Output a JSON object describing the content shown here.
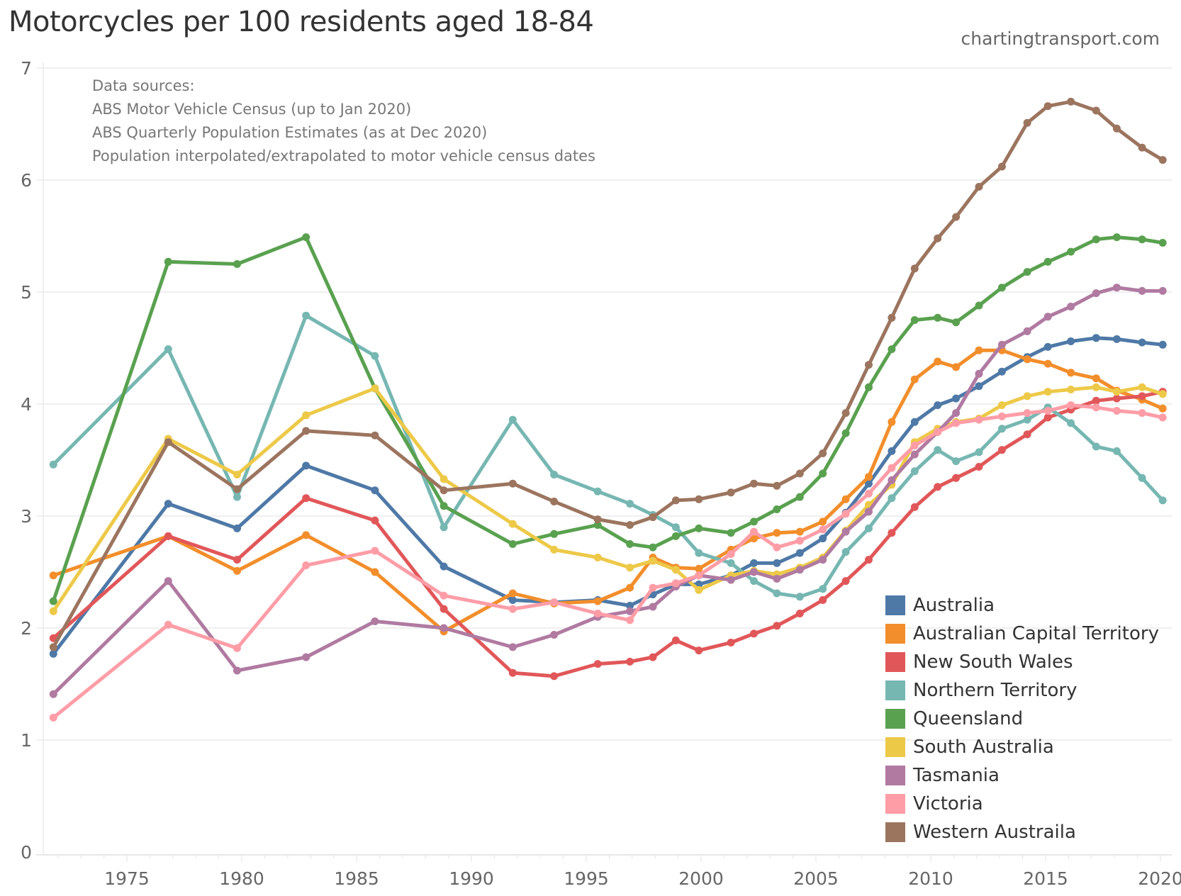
{
  "header": {
    "title": "Motorcycles per 100 residents aged 18-84",
    "site": "chartingtransport.com"
  },
  "chart_data": {
    "type": "line",
    "title": "Motorcycles per 100 residents aged 18-84",
    "xlabel": "",
    "ylabel": "",
    "xlim": [
      1971.4,
      2020.5
    ],
    "ylim": [
      0,
      7
    ],
    "grid": true,
    "legend_position": "bottom-right",
    "y_ticks": [
      "0",
      "1",
      "2",
      "3",
      "4",
      "5",
      "6",
      "7"
    ],
    "x_ticks": [
      "1975",
      "1980",
      "1985",
      "1990",
      "1995",
      "2000",
      "2005",
      "2010",
      "2015",
      "2020"
    ],
    "annotations": [
      "Data sources:",
      "ABS Motor Vehicle Census (up to Jan 2020)",
      "ABS Quarterly Population Estimates (as at Dec 2020)",
      "Population interpolated/extrapolated to motor vehicle census dates"
    ],
    "x": [
      1971.8,
      1976.8,
      1979.8,
      1982.8,
      1985.8,
      1988.8,
      1991.8,
      1993.6,
      1995.5,
      1996.9,
      1997.9,
      1998.9,
      1999.9,
      2001.3,
      2002.3,
      2003.3,
      2004.3,
      2005.3,
      2006.3,
      2007.3,
      2008.3,
      2009.3,
      2010.3,
      2011.1,
      2012.1,
      2013.1,
      2014.2,
      2015.1,
      2016.1,
      2017.2,
      2018.1,
      2019.2,
      2020.1
    ],
    "series": [
      {
        "name": "Australia",
        "color": "#4e79a7",
        "values": [
          1.77,
          3.11,
          2.89,
          3.45,
          3.23,
          2.55,
          2.25,
          2.23,
          2.25,
          2.2,
          2.3,
          2.39,
          2.39,
          2.47,
          2.58,
          2.58,
          2.67,
          2.8,
          3.03,
          3.29,
          3.58,
          3.84,
          3.99,
          4.05,
          4.16,
          4.29,
          4.42,
          4.51,
          4.56,
          4.59,
          4.58,
          4.55,
          4.53
        ]
      },
      {
        "name": "Australian Capital Territory",
        "color": "#f28e2b",
        "values": [
          2.47,
          2.82,
          2.51,
          2.83,
          2.5,
          1.97,
          2.31,
          2.22,
          2.24,
          2.36,
          2.63,
          2.54,
          2.53,
          2.7,
          2.8,
          2.85,
          2.86,
          2.95,
          3.15,
          3.35,
          3.84,
          4.22,
          4.38,
          4.33,
          4.48,
          4.48,
          4.4,
          4.36,
          4.28,
          4.23,
          4.12,
          4.04,
          3.96
        ]
      },
      {
        "name": "New South Wales",
        "color": "#e15759",
        "values": [
          1.91,
          2.82,
          2.61,
          3.16,
          2.96,
          2.17,
          1.6,
          1.57,
          1.68,
          1.7,
          1.74,
          1.89,
          1.8,
          1.87,
          1.95,
          2.02,
          2.13,
          2.25,
          2.42,
          2.61,
          2.85,
          3.08,
          3.26,
          3.34,
          3.44,
          3.59,
          3.73,
          3.88,
          3.95,
          4.03,
          4.05,
          4.07,
          4.11
        ]
      },
      {
        "name": "Northern Territory",
        "color": "#76b7b2",
        "values": [
          3.46,
          4.49,
          3.17,
          4.79,
          4.43,
          2.9,
          3.86,
          3.37,
          3.22,
          3.11,
          3.01,
          2.9,
          2.67,
          2.58,
          2.42,
          2.31,
          2.28,
          2.35,
          2.68,
          2.89,
          3.16,
          3.4,
          3.59,
          3.49,
          3.57,
          3.78,
          3.86,
          3.97,
          3.83,
          3.62,
          3.58,
          3.34,
          3.14
        ]
      },
      {
        "name": "Queensland",
        "color": "#59a14f",
        "values": [
          2.24,
          5.27,
          5.25,
          5.49,
          4.14,
          3.09,
          2.75,
          2.84,
          2.92,
          2.75,
          2.72,
          2.82,
          2.89,
          2.85,
          2.95,
          3.06,
          3.17,
          3.38,
          3.74,
          4.15,
          4.49,
          4.75,
          4.77,
          4.73,
          4.88,
          5.04,
          5.18,
          5.27,
          5.36,
          5.47,
          5.49,
          5.47,
          5.44
        ]
      },
      {
        "name": "South Australia",
        "color": "#edc948",
        "values": [
          2.15,
          3.69,
          3.37,
          3.9,
          4.14,
          3.33,
          2.93,
          2.7,
          2.63,
          2.54,
          2.6,
          2.52,
          2.34,
          2.47,
          2.51,
          2.48,
          2.54,
          2.63,
          2.87,
          3.1,
          3.28,
          3.66,
          3.78,
          3.84,
          3.87,
          3.99,
          4.07,
          4.11,
          4.13,
          4.15,
          4.11,
          4.15,
          4.09
        ]
      },
      {
        "name": "Tasmania",
        "color": "#b07aa1",
        "values": [
          1.41,
          2.42,
          1.62,
          1.74,
          2.06,
          2.0,
          1.83,
          1.94,
          2.1,
          2.15,
          2.19,
          2.37,
          2.47,
          2.43,
          2.5,
          2.44,
          2.52,
          2.61,
          2.86,
          3.04,
          3.32,
          3.55,
          3.75,
          3.92,
          4.27,
          4.53,
          4.65,
          4.78,
          4.87,
          4.99,
          5.04,
          5.01,
          5.01
        ]
      },
      {
        "name": "Victoria",
        "color": "#ff9da7",
        "values": [
          1.2,
          2.03,
          1.82,
          2.56,
          2.69,
          2.29,
          2.17,
          2.23,
          2.13,
          2.07,
          2.36,
          2.4,
          2.47,
          2.66,
          2.86,
          2.72,
          2.78,
          2.88,
          3.02,
          3.2,
          3.43,
          3.63,
          3.75,
          3.83,
          3.86,
          3.89,
          3.92,
          3.94,
          3.99,
          3.97,
          3.94,
          3.92,
          3.88
        ]
      },
      {
        "name": "Western Austraila",
        "color": "#9c755f",
        "values": [
          1.83,
          3.66,
          3.24,
          3.76,
          3.72,
          3.23,
          3.29,
          3.13,
          2.97,
          2.92,
          2.99,
          3.14,
          3.15,
          3.21,
          3.29,
          3.27,
          3.38,
          3.56,
          3.92,
          4.35,
          4.77,
          5.21,
          5.48,
          5.67,
          5.94,
          6.12,
          6.51,
          6.66,
          6.7,
          6.62,
          6.46,
          6.29,
          6.18
        ]
      }
    ]
  }
}
